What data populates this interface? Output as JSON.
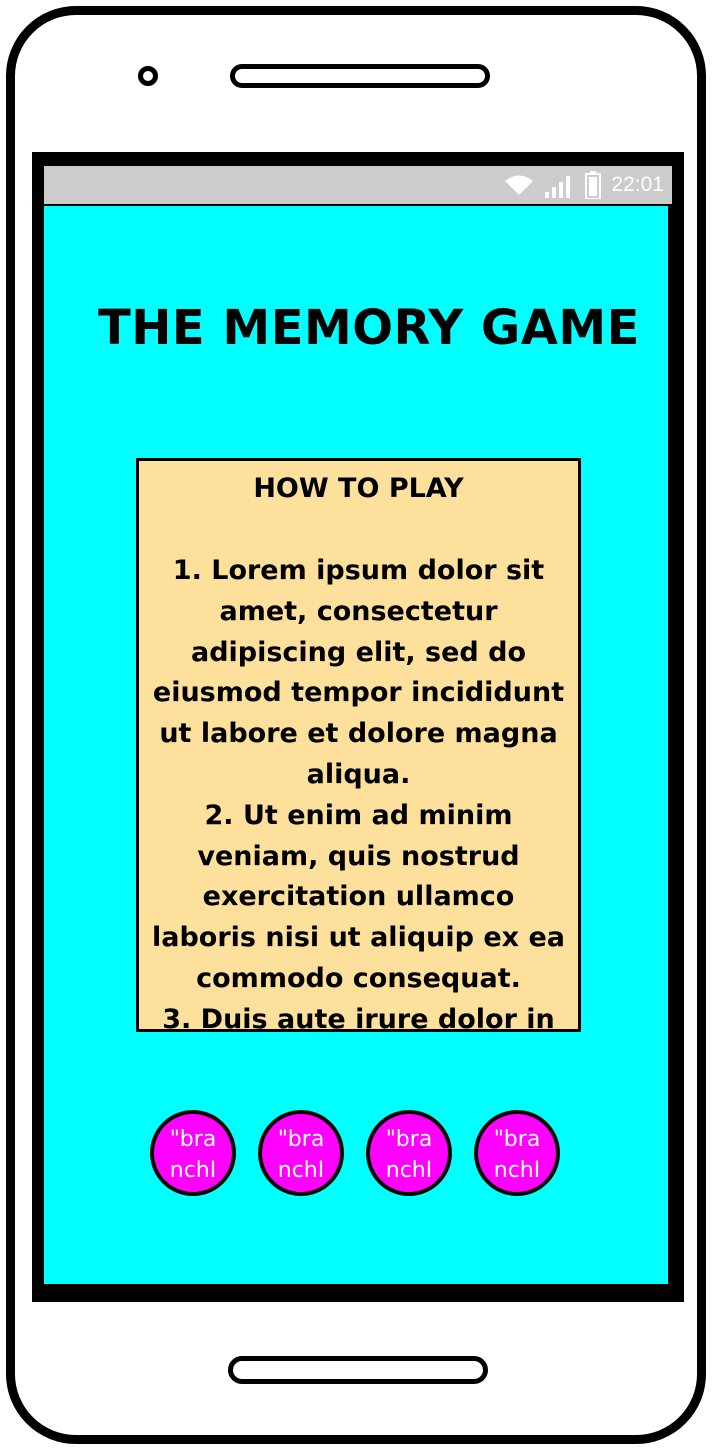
{
  "status_bar": {
    "time": "22:01",
    "icons": [
      "wifi-icon",
      "signal-icon",
      "battery-icon"
    ]
  },
  "app": {
    "title": "THE MEMORY GAME"
  },
  "how_to_play": {
    "heading": "HOW TO PLAY",
    "steps": [
      "1. Lorem ipsum dolor sit amet, consectetur adipiscing elit, sed do eiusmod tempor incididunt ut labore et dolore magna aliqua.",
      "2. Ut enim ad minim veniam, quis nostrud exercitation ullamco laboris nisi ut aliquip ex ea commodo consequat.",
      "3. Duis aute irure dolor in"
    ]
  },
  "branch_buttons": [
    {
      "label": "\"branchID\""
    },
    {
      "label": "\"branchID\""
    },
    {
      "label": "\"branchID\""
    },
    {
      "label": "\"branchID\""
    }
  ],
  "colors": {
    "screen_background": "#00ffff",
    "card_background": "#fce09b",
    "button_background": "#ff00ff",
    "status_bar": "#cccccc"
  }
}
